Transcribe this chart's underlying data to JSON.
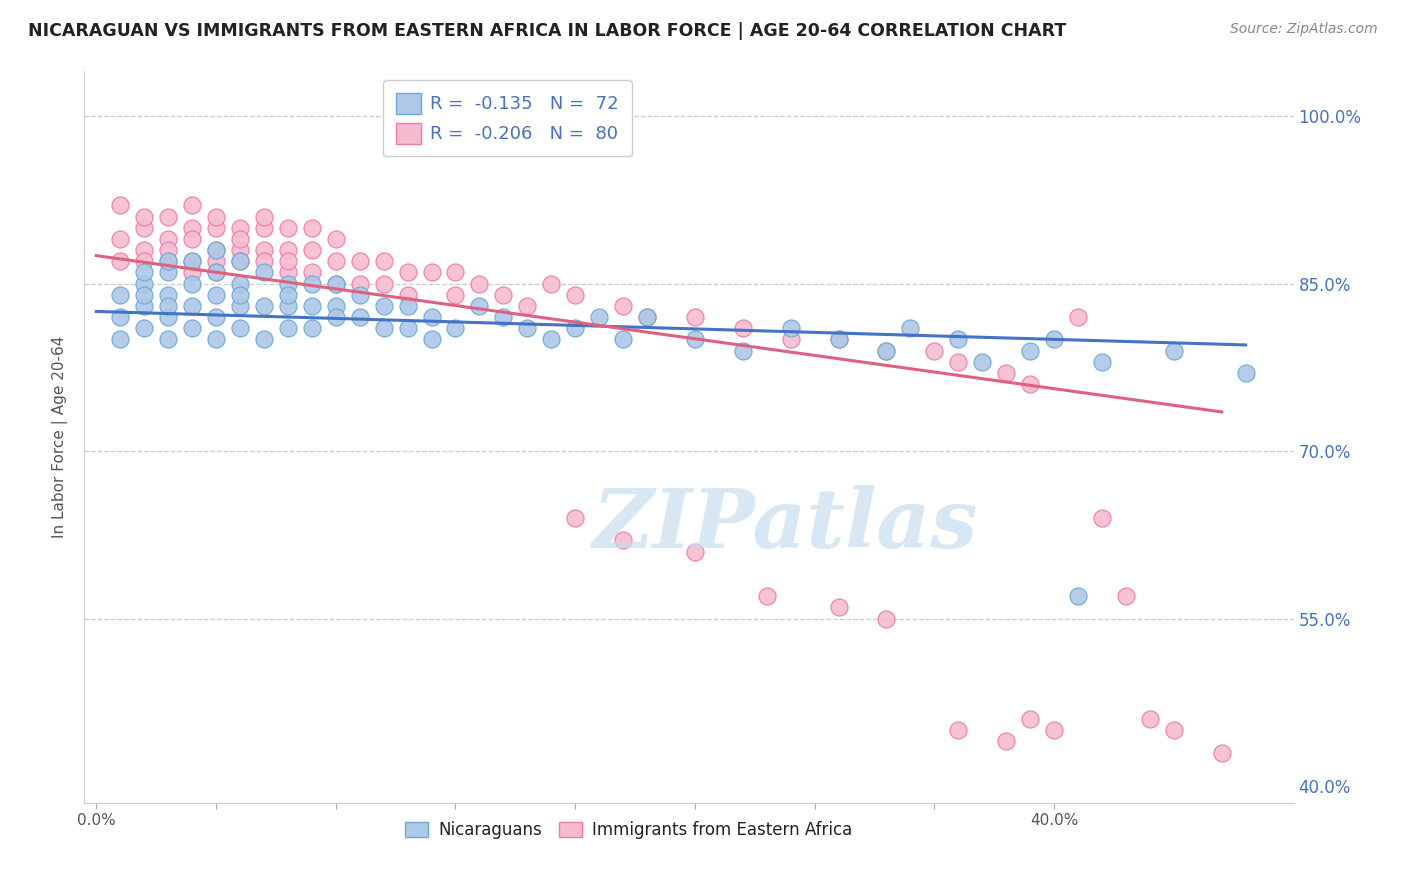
{
  "title": "NICARAGUAN VS IMMIGRANTS FROM EASTERN AFRICA IN LABOR FORCE | AGE 20-64 CORRELATION CHART",
  "source": "Source: ZipAtlas.com",
  "ylabel": "In Labor Force | Age 20-64",
  "blue_color": "#adc8e8",
  "pink_color": "#f5bcd0",
  "blue_edge_color": "#6aaad4",
  "pink_edge_color": "#f07aab",
  "blue_line_color": "#4472c4",
  "pink_line_color": "#e06080",
  "grid_color": "#cccccc",
  "background_color": "#ffffff",
  "right_tick_color": "#4472c4",
  "watermark_color": "#c8ddf0",
  "blue_scatter_x": [
    0.01,
    0.01,
    0.01,
    0.02,
    0.02,
    0.02,
    0.02,
    0.02,
    0.03,
    0.03,
    0.03,
    0.03,
    0.03,
    0.03,
    0.04,
    0.04,
    0.04,
    0.04,
    0.05,
    0.05,
    0.05,
    0.05,
    0.05,
    0.06,
    0.06,
    0.06,
    0.06,
    0.06,
    0.07,
    0.07,
    0.07,
    0.08,
    0.08,
    0.08,
    0.08,
    0.09,
    0.09,
    0.09,
    0.1,
    0.1,
    0.1,
    0.11,
    0.11,
    0.12,
    0.12,
    0.13,
    0.13,
    0.14,
    0.14,
    0.15,
    0.16,
    0.17,
    0.18,
    0.19,
    0.2,
    0.21,
    0.22,
    0.23,
    0.25,
    0.27,
    0.29,
    0.31,
    0.33,
    0.34,
    0.36,
    0.37,
    0.39,
    0.4,
    0.41,
    0.42,
    0.45,
    0.48
  ],
  "blue_scatter_y": [
    0.82,
    0.8,
    0.84,
    0.83,
    0.85,
    0.81,
    0.84,
    0.86,
    0.86,
    0.84,
    0.82,
    0.87,
    0.83,
    0.8,
    0.85,
    0.83,
    0.81,
    0.87,
    0.86,
    0.84,
    0.82,
    0.88,
    0.8,
    0.85,
    0.83,
    0.81,
    0.87,
    0.84,
    0.86,
    0.83,
    0.8,
    0.85,
    0.83,
    0.81,
    0.84,
    0.83,
    0.85,
    0.81,
    0.83,
    0.85,
    0.82,
    0.84,
    0.82,
    0.83,
    0.81,
    0.83,
    0.81,
    0.82,
    0.8,
    0.81,
    0.83,
    0.82,
    0.81,
    0.8,
    0.81,
    0.82,
    0.8,
    0.82,
    0.8,
    0.79,
    0.81,
    0.8,
    0.79,
    0.81,
    0.8,
    0.78,
    0.79,
    0.8,
    0.57,
    0.78,
    0.79,
    0.77
  ],
  "pink_scatter_x": [
    0.01,
    0.01,
    0.01,
    0.02,
    0.02,
    0.02,
    0.02,
    0.03,
    0.03,
    0.03,
    0.03,
    0.04,
    0.04,
    0.04,
    0.04,
    0.04,
    0.05,
    0.05,
    0.05,
    0.05,
    0.05,
    0.06,
    0.06,
    0.06,
    0.06,
    0.07,
    0.07,
    0.07,
    0.07,
    0.08,
    0.08,
    0.08,
    0.08,
    0.09,
    0.09,
    0.09,
    0.1,
    0.1,
    0.1,
    0.11,
    0.11,
    0.12,
    0.12,
    0.13,
    0.13,
    0.14,
    0.15,
    0.15,
    0.16,
    0.17,
    0.18,
    0.19,
    0.2,
    0.22,
    0.23,
    0.25,
    0.27,
    0.29,
    0.31,
    0.33,
    0.35,
    0.36,
    0.38,
    0.39,
    0.2,
    0.22,
    0.25,
    0.28,
    0.31,
    0.33,
    0.36,
    0.38,
    0.39,
    0.4,
    0.41,
    0.42,
    0.43,
    0.44,
    0.45,
    0.47
  ],
  "pink_scatter_y": [
    0.89,
    0.87,
    0.92,
    0.9,
    0.88,
    0.91,
    0.87,
    0.89,
    0.87,
    0.91,
    0.88,
    0.9,
    0.87,
    0.89,
    0.86,
    0.92,
    0.88,
    0.9,
    0.87,
    0.91,
    0.86,
    0.88,
    0.9,
    0.87,
    0.89,
    0.88,
    0.9,
    0.87,
    0.91,
    0.88,
    0.86,
    0.9,
    0.87,
    0.88,
    0.86,
    0.9,
    0.87,
    0.89,
    0.85,
    0.87,
    0.85,
    0.87,
    0.85,
    0.86,
    0.84,
    0.86,
    0.84,
    0.86,
    0.85,
    0.84,
    0.83,
    0.85,
    0.84,
    0.83,
    0.82,
    0.82,
    0.81,
    0.8,
    0.8,
    0.79,
    0.79,
    0.78,
    0.77,
    0.76,
    0.64,
    0.62,
    0.61,
    0.57,
    0.56,
    0.55,
    0.45,
    0.44,
    0.46,
    0.45,
    0.82,
    0.64,
    0.57,
    0.46,
    0.45,
    0.43
  ]
}
